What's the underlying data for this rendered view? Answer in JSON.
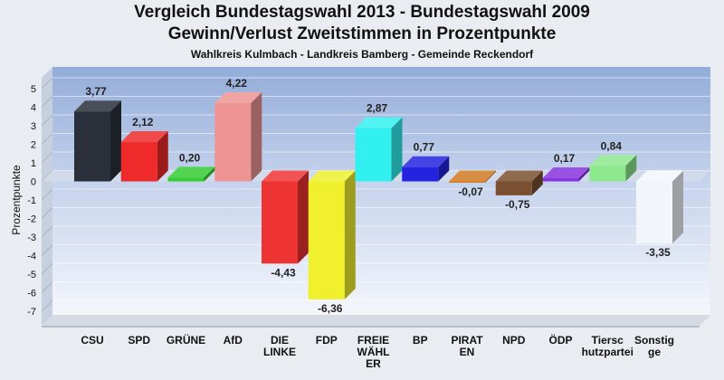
{
  "title": "Vergleich Bundestagswahl 2013 - Bundestagswahl 2009",
  "subtitle": "Gewinn/Verlust Zweitstimmen in Prozentpunkte",
  "subsubtitle": "Wahlkreis Kulmbach - Landkreis Bamberg - Gemeinde Reckendorf",
  "chart_data": {
    "type": "bar",
    "title": "Vergleich Bundestagswahl 2013 - Bundestagswahl 2009",
    "subtitle": "Gewinn/Verlust Zweitstimmen in Prozentpunkte",
    "ylabel": "Prozentpunkte",
    "xlabel": "",
    "ylim": [
      -7,
      5
    ],
    "yticks": [
      5,
      4,
      3,
      2,
      1,
      0,
      -1,
      -2,
      -3,
      -4,
      -5,
      -6,
      -7
    ],
    "grid": true,
    "categories": [
      [
        "CSU"
      ],
      [
        "SPD"
      ],
      [
        "GRÜNE"
      ],
      [
        "AfD"
      ],
      [
        "DIE",
        "LINKE"
      ],
      [
        "FDP"
      ],
      [
        "FREIE",
        "WÄHL",
        "ER"
      ],
      [
        "BP"
      ],
      [
        "PIRAT",
        "EN"
      ],
      [
        "NPD"
      ],
      [
        "ÖDP"
      ],
      [
        "Tiersc",
        "hutzpartei"
      ],
      [
        "Sonstig",
        "ge"
      ]
    ],
    "values": [
      3.77,
      2.12,
      0.2,
      4.22,
      -4.43,
      -6.36,
      2.87,
      0.77,
      -0.07,
      -0.75,
      0.17,
      0.84,
      -3.35
    ],
    "labels": [
      "3,77",
      "2,12",
      "0,20",
      "4,22",
      "-4,43",
      "-6,36",
      "2,87",
      "0,77",
      "-0,07",
      "-0,75",
      "0,17",
      "0,84",
      "-3,35"
    ],
    "colors": [
      "#2a2f3a",
      "#ee2a2a",
      "#33cc33",
      "#ee9494",
      "#ee3333",
      "#f0f02c",
      "#33f0f0",
      "#2323e0",
      "#d07a22",
      "#7a5030",
      "#8833dd",
      "#8ee88e",
      "#f2f5fa"
    ]
  }
}
